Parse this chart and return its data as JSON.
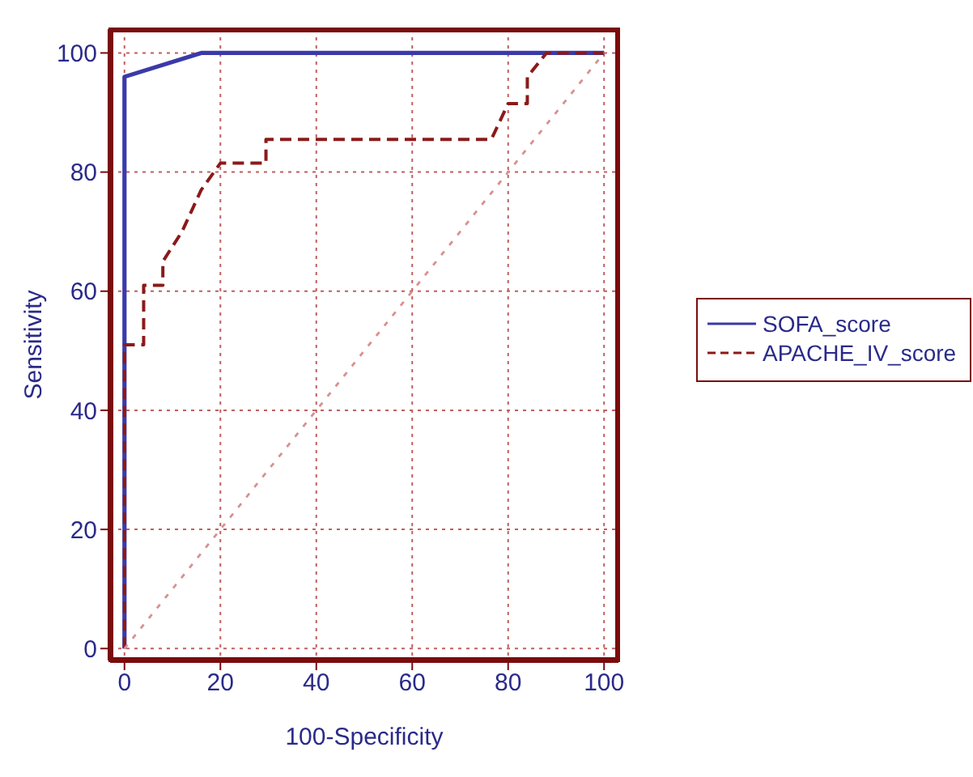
{
  "chart_data": {
    "type": "line",
    "xlabel": "100-Specificity",
    "ylabel": "Sensitivity",
    "xlim": [
      -3,
      103
    ],
    "ylim": [
      -2,
      104
    ],
    "xticks": [
      0,
      20,
      40,
      60,
      80,
      100
    ],
    "yticks": [
      0,
      20,
      40,
      60,
      80,
      100
    ],
    "grid": true,
    "legend": "right",
    "marker": "none",
    "series": [
      {
        "name": "SOFA_score",
        "color": "#3a3aa8",
        "line_style": "solid",
        "x": [
          0,
          0,
          16,
          100
        ],
        "values": [
          0,
          96,
          100,
          100
        ]
      },
      {
        "name": "APACHE_IV_score",
        "color": "#8b1a1a",
        "line_style": "dashed",
        "x": [
          0,
          0,
          4,
          4,
          8,
          8,
          12,
          16,
          20,
          29.5,
          29.5,
          76.5,
          80,
          84,
          84,
          88,
          100
        ],
        "values": [
          0,
          51,
          51,
          61,
          61,
          65,
          70,
          77,
          81.5,
          81.5,
          85.5,
          85.5,
          91.5,
          91.5,
          96,
          100,
          100
        ]
      },
      {
        "color": "#d89090",
        "line_style": "dotted",
        "x": [
          0,
          100
        ],
        "values": [
          0,
          100
        ]
      }
    ]
  }
}
